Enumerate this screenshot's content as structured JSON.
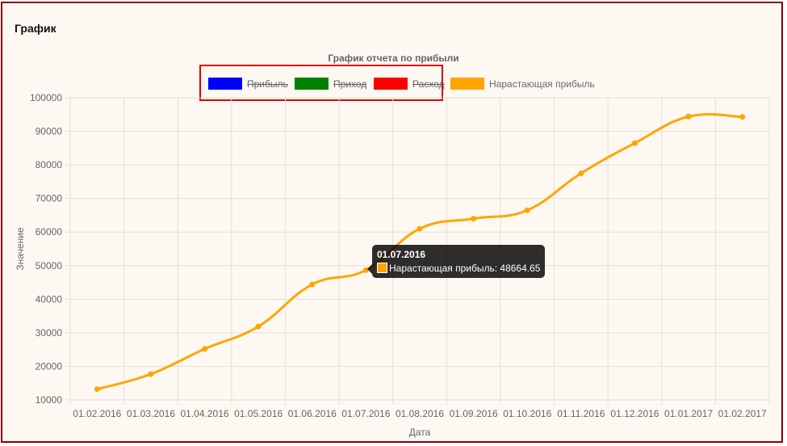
{
  "panel": {
    "title": "График"
  },
  "colors": {
    "frame_border": "#8b0000",
    "legend_highlight": "#e00000",
    "background": "#fdf8f2"
  },
  "legend": {
    "items": [
      {
        "label": "Прибыль",
        "color": "#0000ff",
        "hidden": true
      },
      {
        "label": "Приход",
        "color": "#008000",
        "hidden": true
      },
      {
        "label": "Расход",
        "color": "#ff0000",
        "hidden": true
      },
      {
        "label": "Нарастающая прибыль",
        "color": "#ffa500",
        "hidden": false
      }
    ]
  },
  "tooltip": {
    "title": "01.07.2016",
    "body": "Нарастающая прибыль: 48664.65"
  },
  "chart_data": {
    "type": "line",
    "title": "График отчета по прибыли",
    "xlabel": "Дата",
    "ylabel": "Значение",
    "categories": [
      "01.02.2016",
      "01.03.2016",
      "01.04.2016",
      "01.05.2016",
      "01.06.2016",
      "01.07.2016",
      "01.08.2016",
      "01.09.2016",
      "01.10.2016",
      "01.11.2016",
      "01.12.2016",
      "01.01.2017",
      "01.02.2017"
    ],
    "ylim": [
      10000,
      100000
    ],
    "yticks": [
      10000,
      20000,
      30000,
      40000,
      50000,
      60000,
      70000,
      80000,
      90000,
      100000
    ],
    "grid": true,
    "legend_position": "top",
    "series": [
      {
        "name": "Нарастающая прибыль",
        "color": "#ffa500",
        "values": [
          13200,
          17700,
          25200,
          31900,
          44400,
          48664.65,
          61000,
          64000,
          66500,
          77500,
          86500,
          94400,
          94300
        ]
      }
    ]
  }
}
